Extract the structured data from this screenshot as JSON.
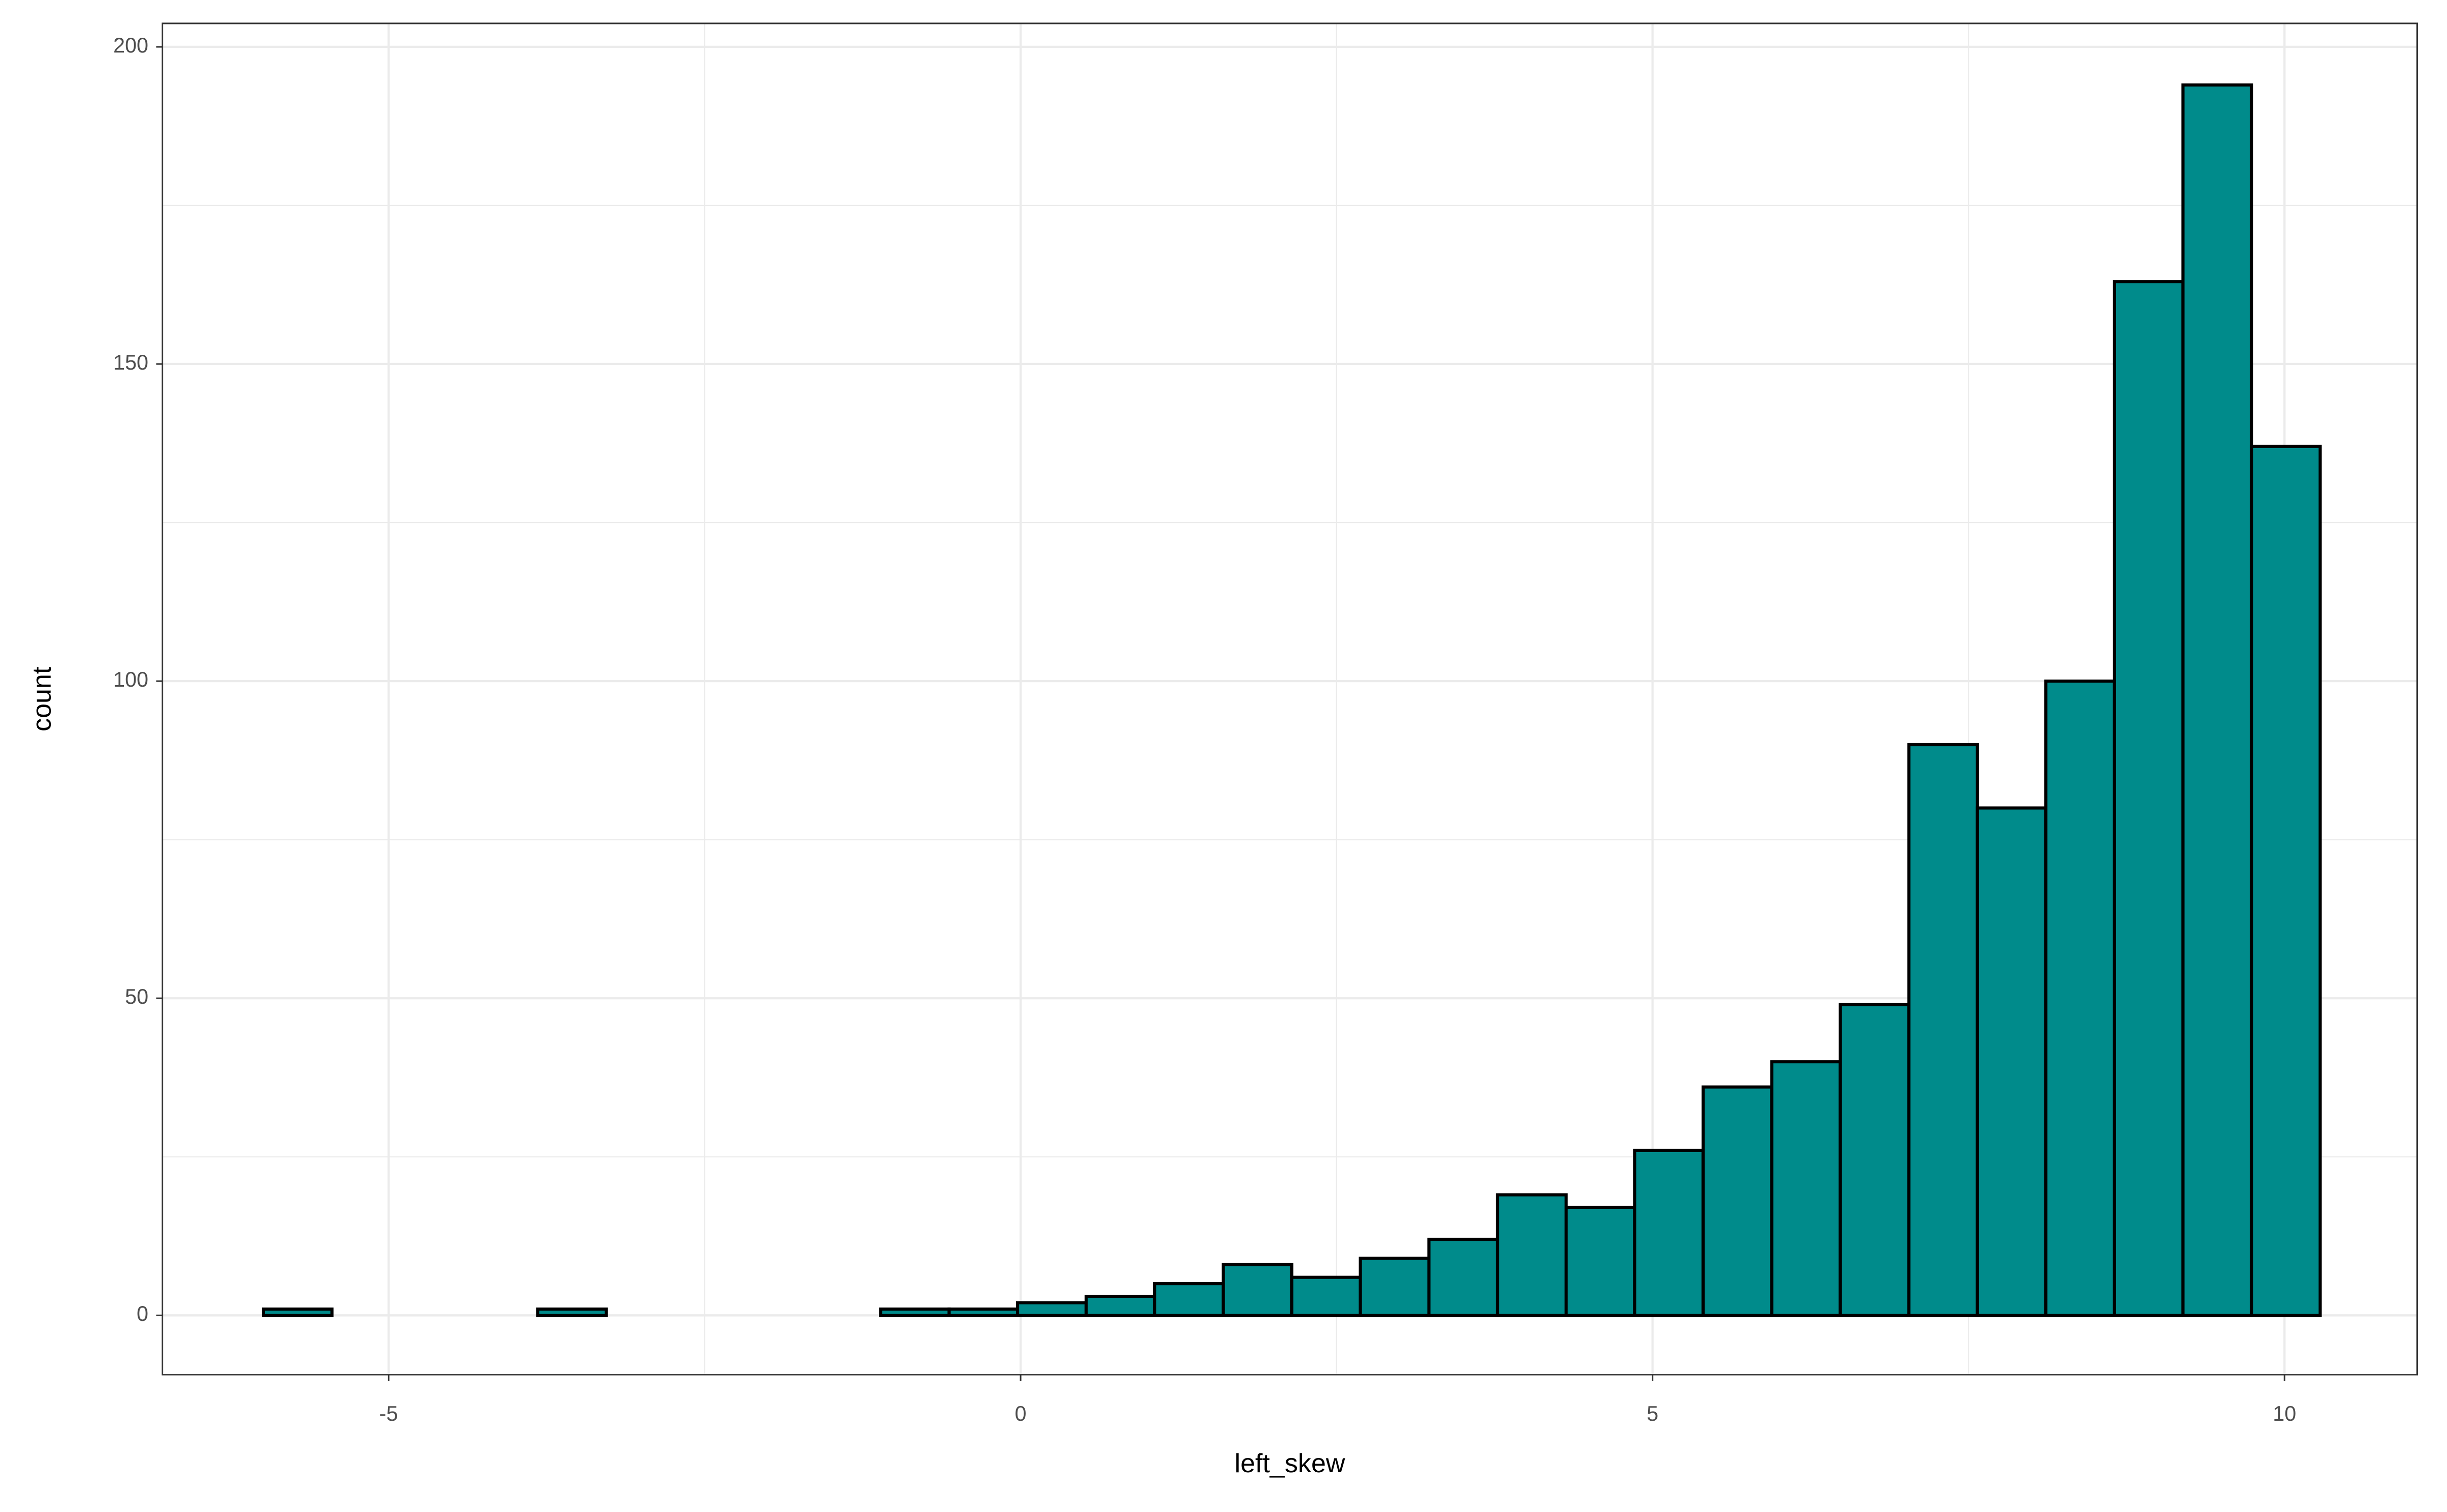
{
  "chart_data": {
    "type": "histogram",
    "x_label": "left_skew",
    "y_label": "count",
    "bins": [
      -5.99,
      -5.448,
      -4.905,
      -4.363,
      -3.82,
      -3.278,
      -2.736,
      -2.193,
      -1.651,
      -1.108,
      -0.566,
      -0.024,
      0.519,
      1.061,
      1.604,
      2.146,
      2.688,
      3.231,
      3.773,
      4.316,
      4.858,
      5.4,
      5.943,
      6.485,
      7.028,
      7.57,
      8.112,
      8.655,
      9.197,
      9.74,
      10.282
    ],
    "values": [
      1,
      0,
      0,
      0,
      1,
      0,
      0,
      0,
      0,
      1,
      1,
      2,
      3,
      5,
      8,
      6,
      9,
      12,
      19,
      17,
      26,
      36,
      40,
      49,
      90,
      80,
      100,
      163,
      194,
      137
    ],
    "color": "#008b8b",
    "edge_color": "#000000",
    "xlim": [
      -6.79,
      11.05
    ],
    "ylim": [
      -9.35,
      203.7
    ],
    "xticks": [
      -5,
      0,
      5,
      10
    ],
    "yticks": [
      0,
      50,
      100,
      150,
      200
    ],
    "xminorticks": [
      -2.5,
      2.5,
      7.5
    ],
    "yminorticks": [
      25,
      75,
      125,
      175
    ],
    "grid": true
  }
}
